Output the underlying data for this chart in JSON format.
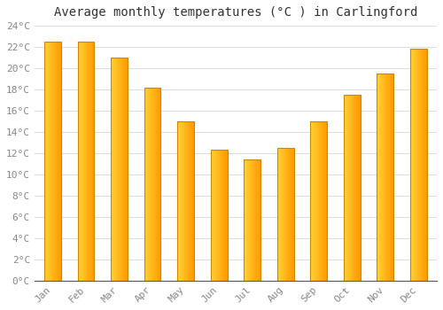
{
  "title": "Average monthly temperatures (°C ) in Carlingford",
  "months": [
    "Jan",
    "Feb",
    "Mar",
    "Apr",
    "May",
    "Jun",
    "Jul",
    "Aug",
    "Sep",
    "Oct",
    "Nov",
    "Dec"
  ],
  "values": [
    22.5,
    22.5,
    21.0,
    18.2,
    15.0,
    12.3,
    11.4,
    12.5,
    15.0,
    17.5,
    19.5,
    21.8
  ],
  "bar_color_left": "#FFD050",
  "bar_color_right": "#FFA000",
  "bar_edge_color": "#CC8800",
  "background_color": "#FFFFFF",
  "grid_color": "#DDDDDD",
  "ylim": [
    0,
    24
  ],
  "ytick_step": 2,
  "title_fontsize": 10,
  "tick_fontsize": 8,
  "tick_color": "#888888",
  "font_family": "monospace",
  "bar_width": 0.5,
  "n_gradient_strips": 30
}
